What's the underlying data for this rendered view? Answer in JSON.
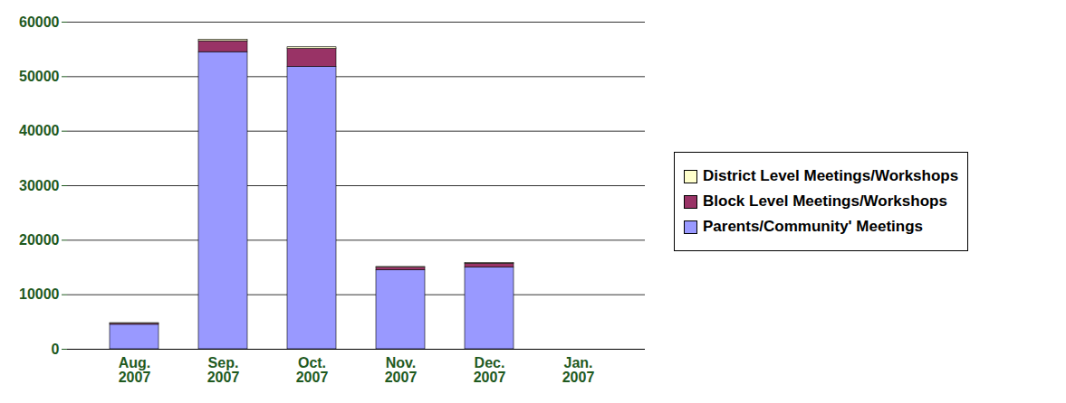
{
  "chart_data": {
    "type": "bar",
    "stacked": true,
    "categories": [
      "Aug. 2007",
      "Sep. 2007",
      "Oct. 2007",
      "Nov. 2007",
      "Dec. 2007",
      "Jan. 2007"
    ],
    "series": [
      {
        "name": "Parents/Community' Meetings",
        "color": "#9999ff",
        "values": [
          4500,
          54500,
          51800,
          14500,
          15000,
          0
        ]
      },
      {
        "name": "Block Level Meetings/Workshops",
        "color": "#993366",
        "values": [
          200,
          2000,
          3300,
          500,
          700,
          0
        ]
      },
      {
        "name": "District Level Meetings/Workshops",
        "color": "#ffffcc",
        "values": [
          100,
          300,
          300,
          100,
          100,
          0
        ]
      }
    ],
    "ylim": [
      0,
      60000
    ],
    "yticks": [
      0,
      10000,
      20000,
      30000,
      40000,
      50000,
      60000
    ],
    "grid": true,
    "legend": "right"
  }
}
